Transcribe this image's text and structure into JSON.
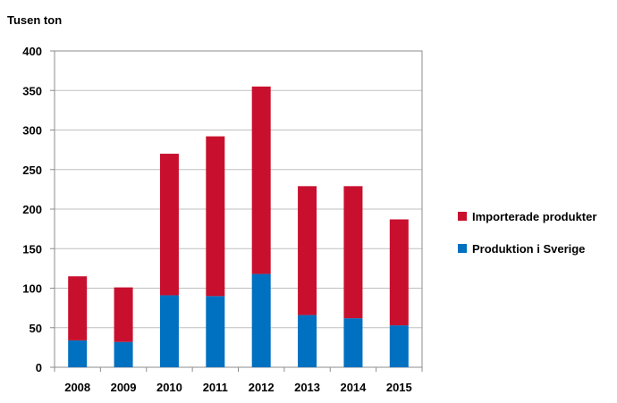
{
  "chart_data": {
    "type": "bar",
    "stacked": true,
    "ylabel": "Tusen ton",
    "xlabel": "",
    "ylim": [
      0,
      400
    ],
    "yticks": [
      0,
      50,
      100,
      150,
      200,
      250,
      300,
      350,
      400
    ],
    "grid": true,
    "legend": "right",
    "categories": [
      "2008",
      "2009",
      "2010",
      "2011",
      "2012",
      "2013",
      "2014",
      "2015"
    ],
    "series": [
      {
        "name": "Produktion i Sverige",
        "color": "#0070c0",
        "values": [
          34,
          32,
          91,
          90,
          118,
          66,
          62,
          53
        ]
      },
      {
        "name": "Importerade produkter",
        "color": "#c8102e",
        "values": [
          81,
          69,
          179,
          202,
          237,
          163,
          167,
          134
        ]
      }
    ]
  }
}
